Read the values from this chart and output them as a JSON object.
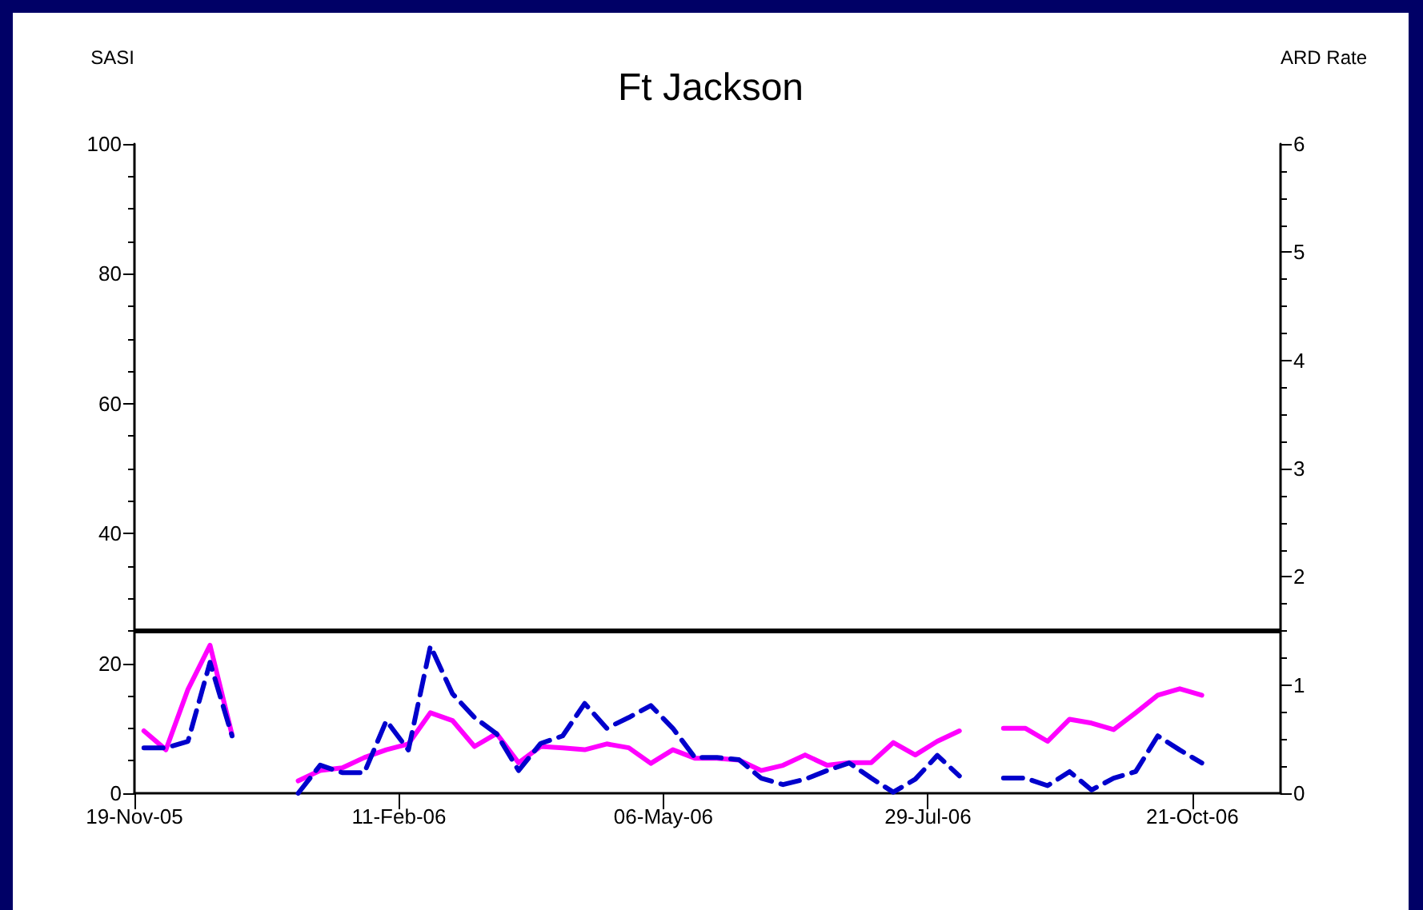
{
  "chart_data": {
    "type": "line",
    "title": "Ft Jackson",
    "ylabel": "SASI",
    "y2label": "ARD Rate",
    "x": [
      "2005-11-22",
      "2005-11-29",
      "2005-12-06",
      "2005-12-13",
      "2005-12-20",
      "2005-12-27",
      "2006-01-03",
      "2006-01-10",
      "2006-01-17",
      "2006-01-24",
      "2006-01-31",
      "2006-02-07",
      "2006-02-14",
      "2006-02-21",
      "2006-02-28",
      "2006-03-07",
      "2006-03-14",
      "2006-03-21",
      "2006-03-28",
      "2006-04-04",
      "2006-04-11",
      "2006-04-18",
      "2006-04-25",
      "2006-05-02",
      "2006-05-09",
      "2006-05-16",
      "2006-05-23",
      "2006-05-30",
      "2006-06-06",
      "2006-06-13",
      "2006-06-20",
      "2006-06-27",
      "2006-07-04",
      "2006-07-11",
      "2006-07-18",
      "2006-07-25",
      "2006-08-01",
      "2006-08-08",
      "2006-08-15",
      "2006-08-22",
      "2006-08-29",
      "2006-09-05",
      "2006-09-12",
      "2006-09-19",
      "2006-09-26",
      "2006-10-03",
      "2006-10-10",
      "2006-10-17",
      "2006-10-24"
    ],
    "series": [
      {
        "color": "#ff00ff",
        "line_style": "solid",
        "values": [
          9.6,
          6.7,
          16,
          22.8,
          9,
          null,
          null,
          1.9,
          3.5,
          3.9,
          5.5,
          6.7,
          7.6,
          12.4,
          11.2,
          7.2,
          9.2,
          4.7,
          7.2,
          7.0,
          6.7,
          7.6,
          7.0,
          4.6,
          6.7,
          5.4,
          5.4,
          5.1,
          3.5,
          4.3,
          5.9,
          4.3,
          4.7,
          4.7,
          7.8,
          5.9,
          8.0,
          9.6,
          null,
          10.0,
          10.0,
          8.0,
          11.4,
          10.8,
          9.8,
          12.4,
          15.1,
          16.1,
          15.1
        ]
      },
      {
        "color": "#0000cc",
        "line_style": "dashed",
        "axis": "y2",
        "values": [
          0.42,
          0.42,
          0.48,
          1.21,
          0.53,
          null,
          null,
          0,
          0.26,
          0.19,
          0.19,
          0.67,
          0.4,
          1.36,
          0.92,
          0.7,
          0.55,
          0.21,
          0.46,
          0.53,
          0.83,
          0.6,
          0.7,
          0.81,
          0.6,
          0.33,
          0.33,
          0.31,
          0.14,
          0.08,
          0.13,
          0.21,
          0.28,
          0.14,
          0.01,
          0.13,
          0.35,
          0.16,
          null,
          0.14,
          0.14,
          0.07,
          0.2,
          0.03,
          0.14,
          0.2,
          0.53,
          0.4,
          0.28
        ]
      }
    ],
    "xlim": [
      "2005-11-19",
      "2006-11-18"
    ],
    "xticks": [
      {
        "value": "2005-11-19",
        "label": "19-Nov-05"
      },
      {
        "value": "2006-02-11",
        "label": "11-Feb-06"
      },
      {
        "value": "2006-05-06",
        "label": "06-May-06"
      },
      {
        "value": "2006-07-29",
        "label": "29-Jul-06"
      },
      {
        "value": "2006-10-21",
        "label": "21-Oct-06"
      }
    ],
    "ylim": [
      0,
      100
    ],
    "yticks": [
      0,
      20,
      40,
      60,
      80,
      100
    ],
    "y2lim": [
      0,
      6
    ],
    "y2ticks": [
      0,
      1,
      2,
      3,
      4,
      5,
      6
    ],
    "ref_lines": [
      {
        "axis": "y",
        "value": 25,
        "color": "#000000"
      }
    ],
    "grid": false,
    "marker": "none"
  }
}
